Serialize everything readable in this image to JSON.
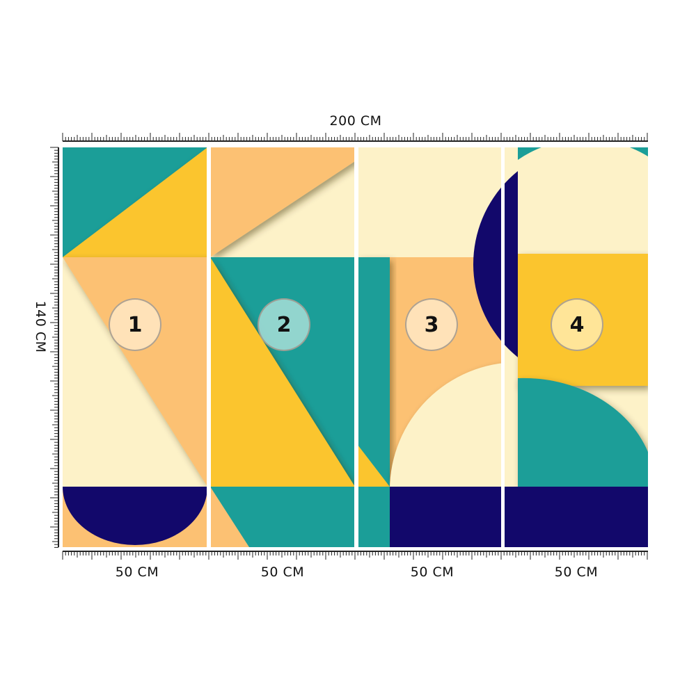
{
  "dimensions": {
    "total_width": "200 CM",
    "total_height": "140 CM"
  },
  "panels": [
    {
      "number": "1",
      "width_label": "50 CM"
    },
    {
      "number": "2",
      "width_label": "50 CM"
    },
    {
      "number": "3",
      "width_label": "50 CM"
    },
    {
      "number": "4",
      "width_label": "50 CM"
    }
  ],
  "palette": {
    "teal": "#1b9e98",
    "yellow": "#fbc52e",
    "peach": "#fcc173",
    "cream": "#fdf2c8",
    "navy": "#12086b"
  }
}
